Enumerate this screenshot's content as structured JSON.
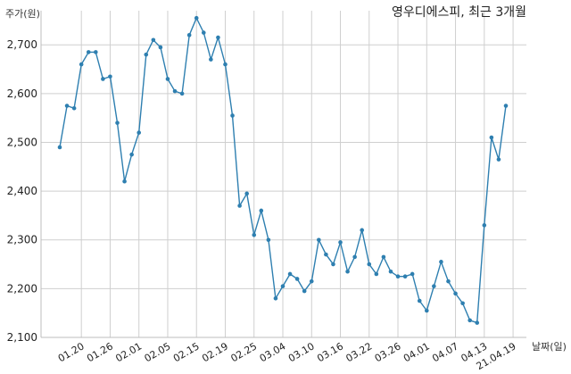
{
  "chart_data": {
    "type": "line",
    "title": "영우디에스피, 최근 3개월",
    "ylabel": "주가(원)",
    "xlabel": "날짜(일)",
    "ylim": [
      2100,
      2770
    ],
    "yticks": [
      2100,
      2200,
      2300,
      2400,
      2500,
      2600,
      2700
    ],
    "ytick_labels": [
      "2,100",
      "2,200",
      "2,300",
      "2,400",
      "2,500",
      "2,600",
      "2,700"
    ],
    "xtick_labels": [
      "01.20",
      "01.26",
      "02.01",
      "02.05",
      "02.15",
      "02.19",
      "02.25",
      "03.04",
      "03.10",
      "03.16",
      "03.22",
      "03.26",
      "04.01",
      "04.07",
      "04.13",
      "21.04.19"
    ],
    "xtick_index": [
      3,
      7,
      11,
      15,
      19,
      23,
      27,
      31,
      35,
      39,
      43,
      47,
      51,
      55,
      59,
      63
    ],
    "grid": true,
    "color": "#2e7fb0",
    "values": [
      2490,
      2575,
      2570,
      2660,
      2685,
      2685,
      2630,
      2635,
      2540,
      2420,
      2475,
      2520,
      2680,
      2710,
      2695,
      2630,
      2605,
      2600,
      2720,
      2755,
      2725,
      2670,
      2715,
      2660,
      2555,
      2370,
      2395,
      2310,
      2360,
      2300,
      2180,
      2205,
      2230,
      2220,
      2195,
      2215,
      2300,
      2270,
      2250,
      2295,
      2235,
      2265,
      2320,
      2250,
      2230,
      2265,
      2235,
      2225,
      2225,
      2230,
      2175,
      2155,
      2205,
      2255,
      2215,
      2190,
      2170,
      2135,
      2130,
      2330,
      2510,
      2465,
      2575
    ]
  }
}
